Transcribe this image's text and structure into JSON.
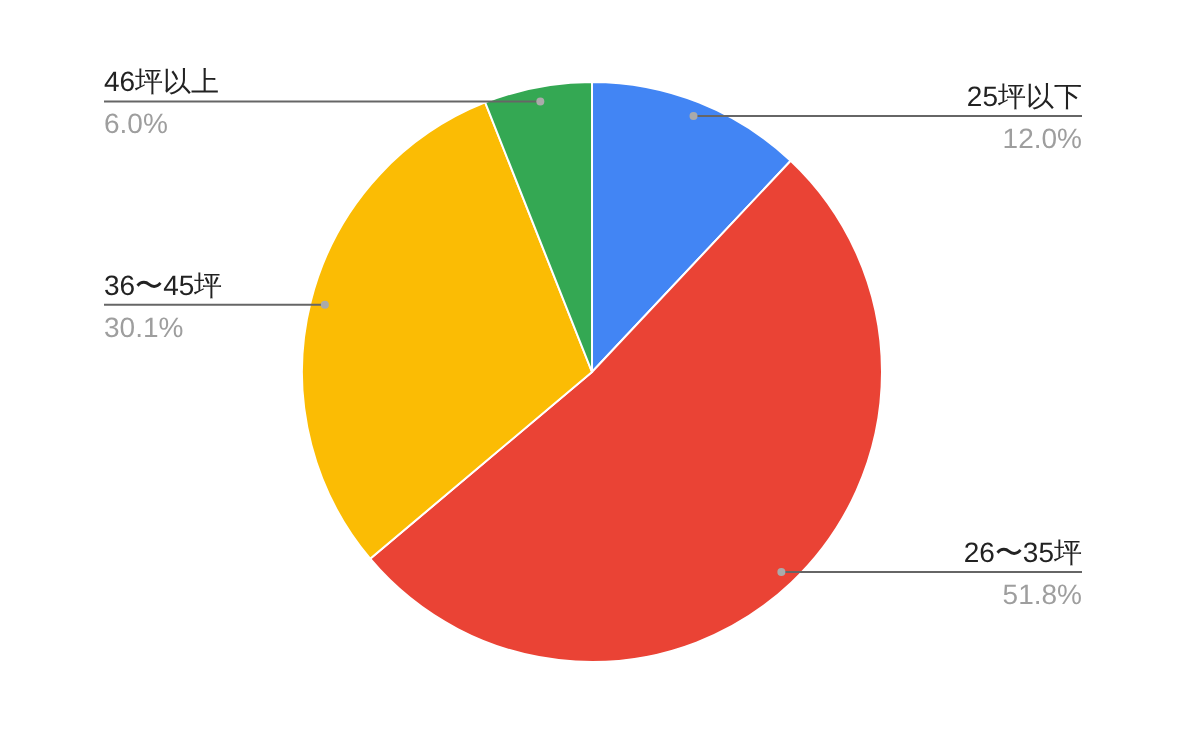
{
  "chart_data": {
    "type": "pie",
    "categories": [
      "25坪以下",
      "26〜35坪",
      "36〜45坪",
      "46坪以上"
    ],
    "values": [
      12.0,
      51.8,
      30.1,
      6.0
    ],
    "colors": [
      "#4285f4",
      "#ea4335",
      "#fbbc04",
      "#34a853"
    ],
    "value_labels": [
      "12.0%",
      "51.8%",
      "30.1%",
      "6.0%"
    ]
  }
}
